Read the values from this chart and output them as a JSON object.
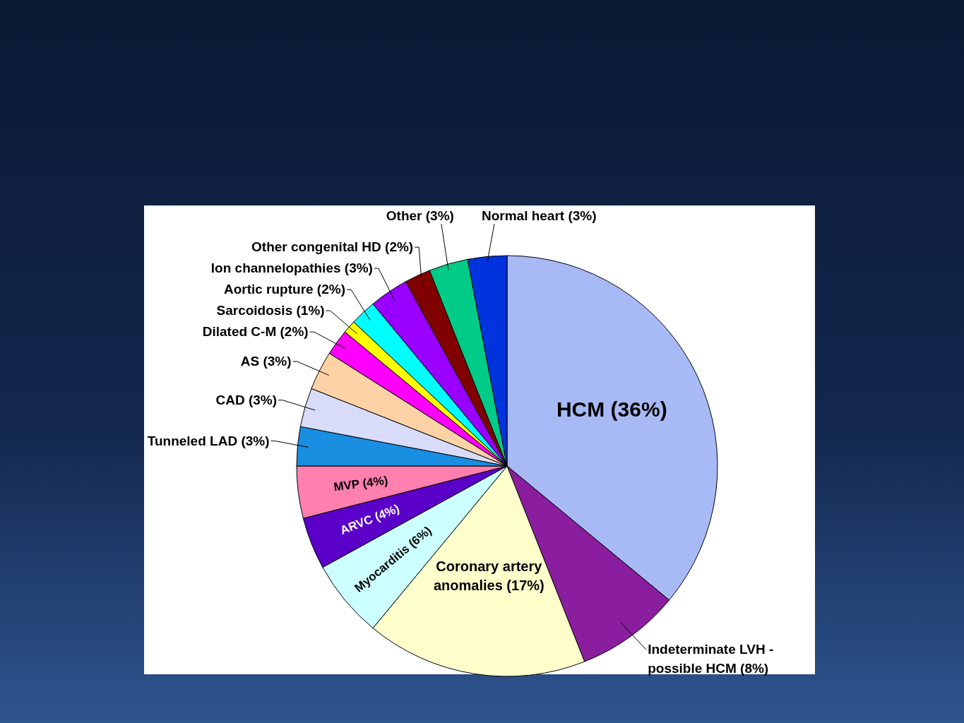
{
  "chart_data": {
    "type": "pie",
    "categories": [
      "HCM",
      "Indeterminate LVH - possible HCM",
      "Coronary artery anomalies",
      "Myocarditis",
      "ARVC",
      "MVP",
      "Tunneled LAD",
      "CAD",
      "AS",
      "Dilated C-M",
      "Sarcoidosis",
      "Aortic rupture",
      "Ion channelopathies",
      "Other congenital HD",
      "Other",
      "Normal heart"
    ],
    "values": [
      36,
      8,
      17,
      6,
      4,
      4,
      3,
      3,
      3,
      2,
      1,
      2,
      3,
      2,
      3,
      3
    ],
    "value_labels": [
      "(36%)",
      "(8%)",
      "(17%)",
      "(6%)",
      "(4%)",
      "(4%)",
      "(3%)",
      "(3%)",
      "(3%)",
      "(2%)",
      "(1%)",
      "(2%)",
      "(3%)",
      "(2%)",
      "(3%)",
      "(3%)"
    ],
    "colors": [
      "#a8baf5",
      "#8a1e9e",
      "#ffffcc",
      "#ccffff",
      "#5a00c8",
      "#ff7fae",
      "#1a8ee0",
      "#d8dcf8",
      "#ffd2a6",
      "#ff00ff",
      "#ffff00",
      "#00ffff",
      "#9a00ff",
      "#800000",
      "#00cc88",
      "#0033dd"
    ]
  }
}
